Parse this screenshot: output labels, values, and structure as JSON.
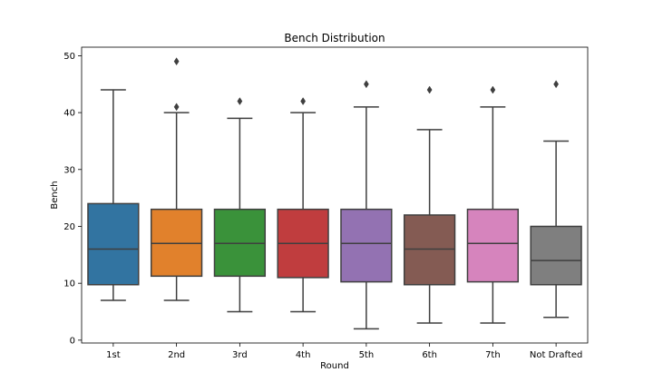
{
  "chart_data": {
    "type": "box",
    "title": "Bench Distribution",
    "xlabel": "Round",
    "ylabel": "Bench",
    "ylim": [
      -0.5,
      51.5
    ],
    "yticks": [
      0,
      10,
      20,
      30,
      40,
      50
    ],
    "grid": false,
    "categories": [
      "1st",
      "2nd",
      "3rd",
      "4th",
      "5th",
      "6th",
      "7th",
      "Not Drafted"
    ],
    "boxes": [
      {
        "category": "1st",
        "color": "#3274a1",
        "whisker_low": 7,
        "q1": 9.75,
        "median": 16,
        "q3": 24,
        "whisker_high": 44,
        "outliers": []
      },
      {
        "category": "2nd",
        "color": "#e1812c",
        "whisker_low": 7,
        "q1": 11.25,
        "median": 17,
        "q3": 23,
        "whisker_high": 40,
        "outliers": [
          41,
          49
        ]
      },
      {
        "category": "3rd",
        "color": "#3a923a",
        "whisker_low": 5,
        "q1": 11.25,
        "median": 17,
        "q3": 23,
        "whisker_high": 39,
        "outliers": [
          42
        ]
      },
      {
        "category": "4th",
        "color": "#c03d3e",
        "whisker_low": 5,
        "q1": 11,
        "median": 17,
        "q3": 23,
        "whisker_high": 40,
        "outliers": [
          42
        ]
      },
      {
        "category": "5th",
        "color": "#9372b2",
        "whisker_low": 2,
        "q1": 10.25,
        "median": 17,
        "q3": 23,
        "whisker_high": 41,
        "outliers": [
          45
        ]
      },
      {
        "category": "6th",
        "color": "#845b53",
        "whisker_low": 3,
        "q1": 9.75,
        "median": 16,
        "q3": 22,
        "whisker_high": 37,
        "outliers": [
          44
        ]
      },
      {
        "category": "7th",
        "color": "#d684bd",
        "whisker_low": 3,
        "q1": 10.25,
        "median": 17,
        "q3": 23,
        "whisker_high": 41,
        "outliers": [
          44
        ]
      },
      {
        "category": "Not Drafted",
        "color": "#7f7f7f",
        "whisker_low": 4,
        "q1": 9.75,
        "median": 14,
        "q3": 20,
        "whisker_high": 35,
        "outliers": [
          45
        ]
      }
    ]
  }
}
